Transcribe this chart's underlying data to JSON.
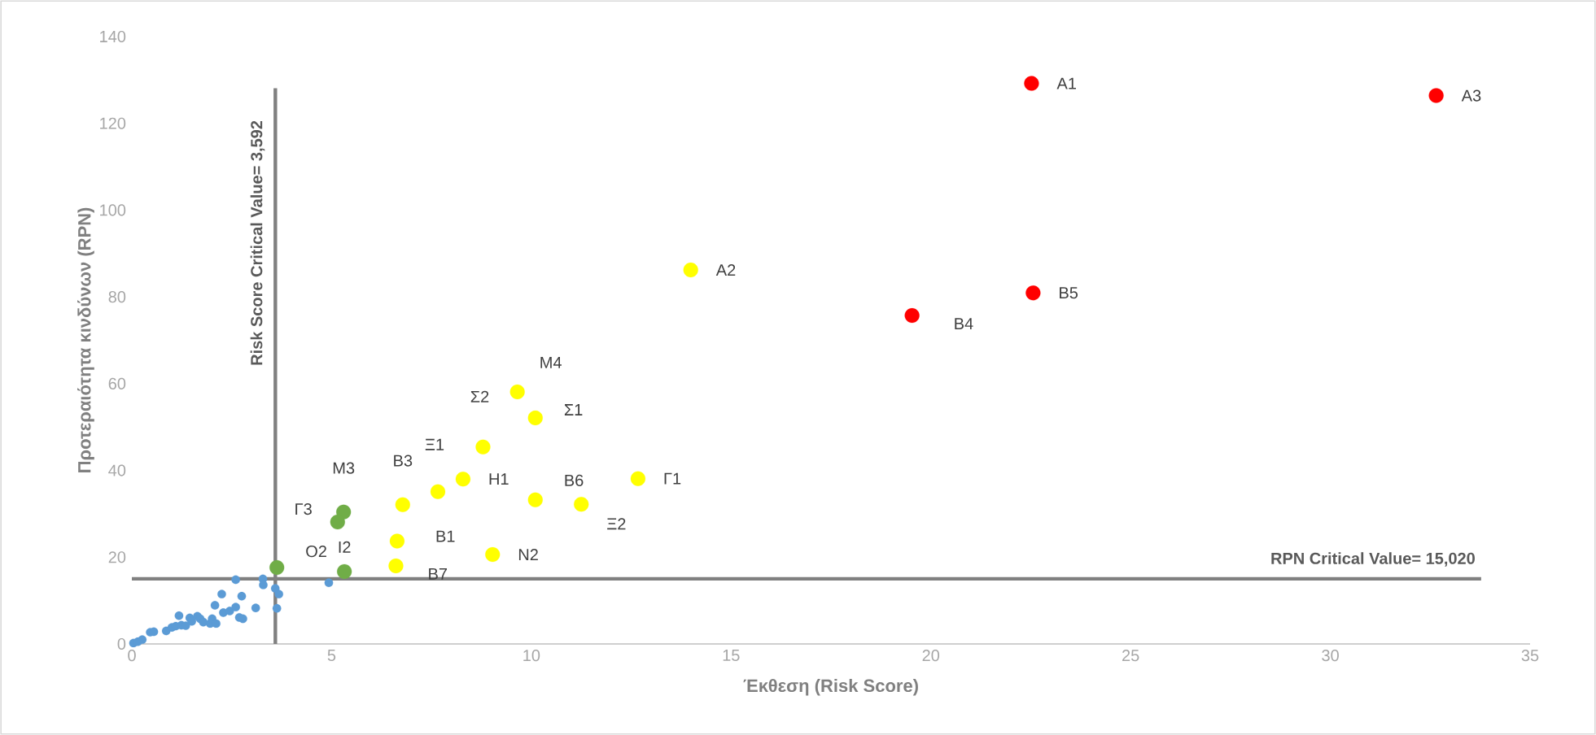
{
  "chart_data": {
    "type": "scatter",
    "xlabel": "Έκθεση (Risk Score)",
    "ylabel": "Προτεραιότητα κινδύνων (RPN)",
    "xlim": [
      0,
      35
    ],
    "xticks": [
      0,
      5,
      10,
      15,
      20,
      25,
      30,
      35
    ],
    "ylim": [
      0,
      140
    ],
    "yticks": [
      0,
      20,
      40,
      60,
      80,
      100,
      120,
      140
    ],
    "grid": false,
    "marker": "circle",
    "series": [
      {
        "color": "#5b9bd5",
        "x": [
          0.04,
          0.15,
          0.26,
          0.46,
          0.55,
          0.86,
          1.0,
          1.1,
          1.18,
          1.24,
          1.35,
          1.45,
          1.5,
          1.64,
          1.71,
          1.79,
          1.96,
          2.01,
          2.11,
          2.08,
          2.25,
          2.29,
          2.45,
          2.6,
          2.6,
          2.69,
          2.78,
          2.75,
          3.1,
          3.28,
          3.29,
          3.59,
          3.68,
          3.63,
          4.93
        ],
        "values": [
          0.2,
          0.5,
          1.0,
          2.7,
          2.8,
          3.0,
          3.8,
          4.1,
          6.5,
          4.3,
          4.2,
          6.0,
          5.2,
          6.4,
          5.8,
          5.0,
          4.7,
          5.8,
          4.7,
          8.9,
          11.5,
          7.2,
          7.6,
          8.5,
          14.8,
          6.1,
          5.8,
          11.0,
          8.3,
          15.0,
          13.6,
          12.8,
          11.5,
          8.2,
          14.1
        ]
      },
      {
        "color": "#70ad47",
        "x": [
          5.3,
          5.15,
          3.63,
          5.32
        ],
        "values": [
          30.4,
          28.1,
          17.6,
          16.7
        ]
      },
      {
        "color": "#ffff00",
        "x": [
          13.99,
          9.65,
          10.1,
          8.79,
          7.66,
          8.29,
          6.78,
          10.1,
          12.67,
          11.25,
          6.64,
          9.03,
          6.61
        ],
        "values": [
          86.2,
          58.1,
          52.1,
          45.4,
          35.1,
          38.0,
          32.1,
          33.2,
          38.1,
          32.2,
          23.7,
          20.6,
          18.0
        ]
      },
      {
        "color": "#ff0000",
        "x": [
          22.52,
          32.65,
          22.56,
          19.53
        ],
        "values": [
          129.2,
          126.4,
          80.9,
          75.7
        ]
      }
    ],
    "ref_lines": [
      {
        "axis": "x",
        "value": 3.592,
        "label": "Risk Score Critical Value= 3,592",
        "color": "#808080"
      },
      {
        "axis": "y",
        "value": 15.02,
        "label": "RPN Critical Value= 15,020",
        "color": "#808080"
      }
    ],
    "annotations": [
      {
        "text": "A1",
        "x": 22.52,
        "y": 129.2
      },
      {
        "text": "A3",
        "x": 32.65,
        "y": 126.4
      },
      {
        "text": "A2",
        "x": 13.99,
        "y": 86.2
      },
      {
        "text": "B5",
        "x": 22.56,
        "y": 80.9
      },
      {
        "text": "B4",
        "x": 19.53,
        "y": 75.7
      },
      {
        "text": "M4",
        "x": 9.65,
        "y": 58.1
      },
      {
        "text": "Σ1",
        "x": 10.1,
        "y": 52.1
      },
      {
        "text": "Σ2",
        "x": 8.79,
        "y": 45.4
      },
      {
        "text": "Ξ1",
        "x": 7.66,
        "y": 35.1
      },
      {
        "text": "H1",
        "x": 8.29,
        "y": 38.0
      },
      {
        "text": "B3",
        "x": 6.78,
        "y": 32.1
      },
      {
        "text": "B6",
        "x": 10.1,
        "y": 33.2
      },
      {
        "text": "Γ1",
        "x": 12.67,
        "y": 38.1
      },
      {
        "text": "Ξ2",
        "x": 11.25,
        "y": 32.2
      },
      {
        "text": "B1",
        "x": 6.64,
        "y": 23.7
      },
      {
        "text": "N2",
        "x": 9.03,
        "y": 20.6
      },
      {
        "text": "B7",
        "x": 6.61,
        "y": 18.0
      },
      {
        "text": "M3",
        "x": 5.3,
        "y": 30.4
      },
      {
        "text": "Γ3",
        "x": 5.15,
        "y": 28.1
      },
      {
        "text": "O2",
        "x": 3.63,
        "y": 17.6
      },
      {
        "text": "I2",
        "x": 5.32,
        "y": 16.7
      }
    ]
  }
}
